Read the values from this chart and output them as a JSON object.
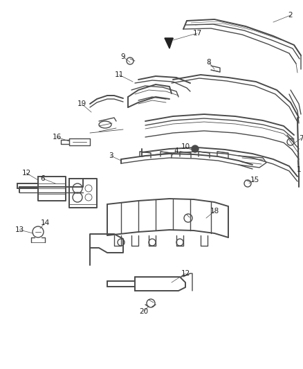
{
  "bg_color": "#ffffff",
  "line_color": "#4a4a4a",
  "label_color": "#222222",
  "fig_width": 4.38,
  "fig_height": 5.33,
  "dpi": 100,
  "lw_heavy": 1.4,
  "lw_med": 1.0,
  "lw_light": 0.6,
  "label_fs": 7.5
}
